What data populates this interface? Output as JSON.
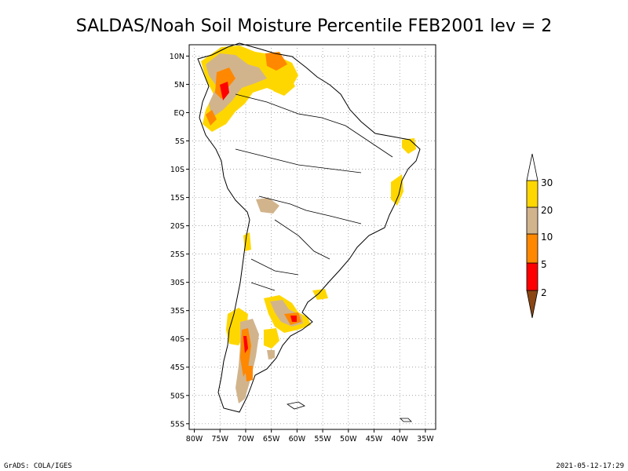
{
  "chart_data": {
    "type": "heatmap",
    "title": "SALDAS/Noah Soil Moisture Percentile FEB2001 lev = 2",
    "x_ticks": [
      "80W",
      "75W",
      "70W",
      "65W",
      "60W",
      "55W",
      "50W",
      "45W",
      "40W",
      "35W"
    ],
    "y_ticks": [
      "10N",
      "5N",
      "EQ",
      "5S",
      "10S",
      "15S",
      "20S",
      "25S",
      "30S",
      "35S",
      "40S",
      "45S",
      "50S",
      "55S"
    ],
    "lon_range": [
      -81,
      -33
    ],
    "lat_range": [
      -56,
      12
    ],
    "grid": true,
    "colorbar": {
      "position": "right",
      "tick_labels": [
        "2",
        "5",
        "10",
        "20",
        "30"
      ],
      "colors": [
        "#8B4513",
        "#ff0000",
        "#ff8800",
        "#d2b48c",
        "#ffd700"
      ]
    },
    "legend": []
  },
  "footer": {
    "left": "GrADS: COLA/IGES",
    "right": "2021-05-12-17:29"
  }
}
